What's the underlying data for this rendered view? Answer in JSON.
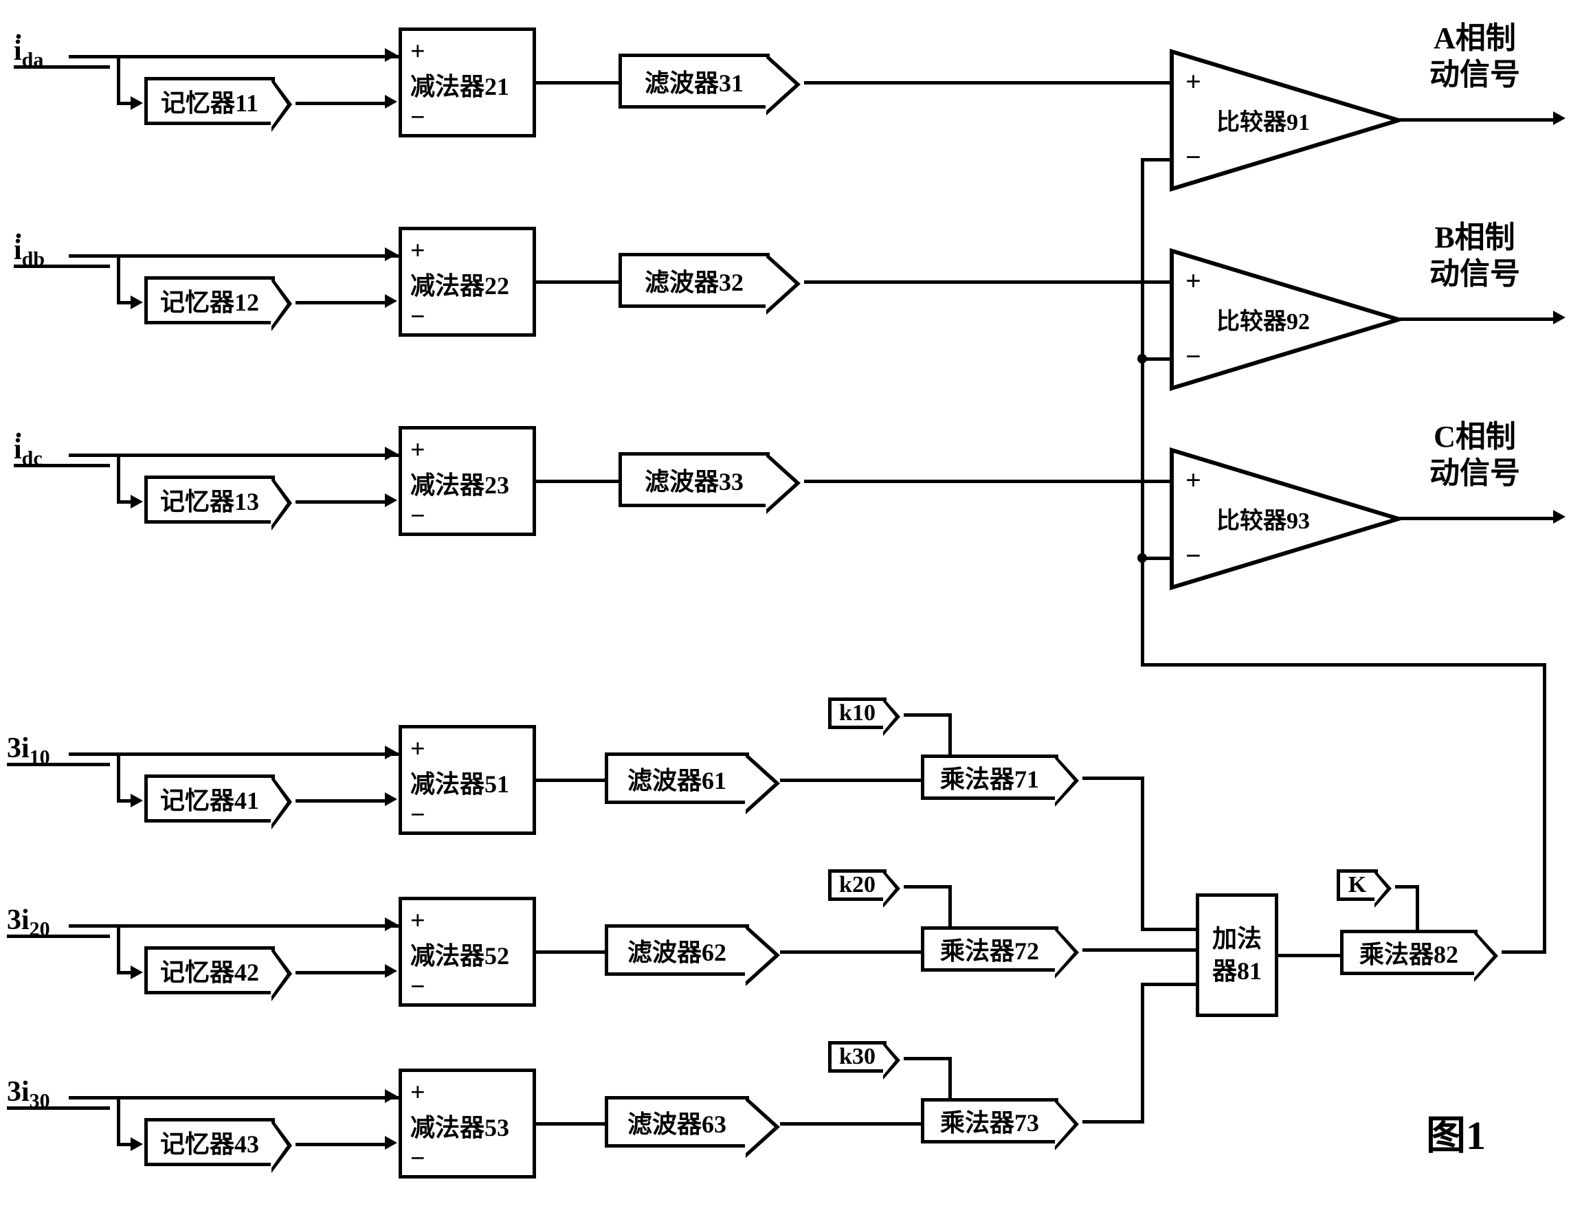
{
  "figure_label": "图1",
  "inputs": {
    "ida": "ida",
    "idb": "idb",
    "idc": "idc",
    "i310": "3i10",
    "i320": "3i20",
    "i330": "3i30"
  },
  "memory": {
    "m11": "记忆器11",
    "m12": "记忆器12",
    "m13": "记忆器13",
    "m41": "记忆器41",
    "m42": "记忆器42",
    "m43": "记忆器43"
  },
  "subtractor": {
    "s21": "减法器21",
    "s22": "减法器22",
    "s23": "减法器23",
    "s51": "减法器51",
    "s52": "减法器52",
    "s53": "减法器53",
    "plus": "+",
    "minus": "−"
  },
  "filter": {
    "f31": "滤波器31",
    "f32": "滤波器32",
    "f33": "滤波器33",
    "f61": "滤波器61",
    "f62": "滤波器62",
    "f63": "滤波器63"
  },
  "comparator": {
    "c91": "比较器91",
    "c92": "比较器92",
    "c93": "比较器93",
    "plus": "+",
    "minus": "−"
  },
  "multiplier": {
    "m71": "乘法器71",
    "m72": "乘法器72",
    "m73": "乘法器73",
    "m82": "乘法器82"
  },
  "adder": {
    "a81": "加法<br>器81"
  },
  "coefficients": {
    "k10": "k10",
    "k20": "k20",
    "k30": "k30",
    "K": "K"
  },
  "outputs": {
    "A": "A相制<br>动信号",
    "B": "B相制<br>动信号",
    "C": "C相制<br>动信号"
  },
  "layout": {
    "row_y": {
      "r1": 70,
      "r2": 360,
      "r3": 650,
      "r4": 1080,
      "r5": 1330,
      "r6": 1580
    },
    "col_x": {
      "input": 10,
      "mem": 210,
      "sub": 580,
      "fil": 900,
      "mult": 1340,
      "cmp": 1700,
      "add": 1740,
      "out": 2060
    }
  },
  "colors": {
    "line": "#000000",
    "bg": "#ffffff",
    "text": "#000000"
  }
}
